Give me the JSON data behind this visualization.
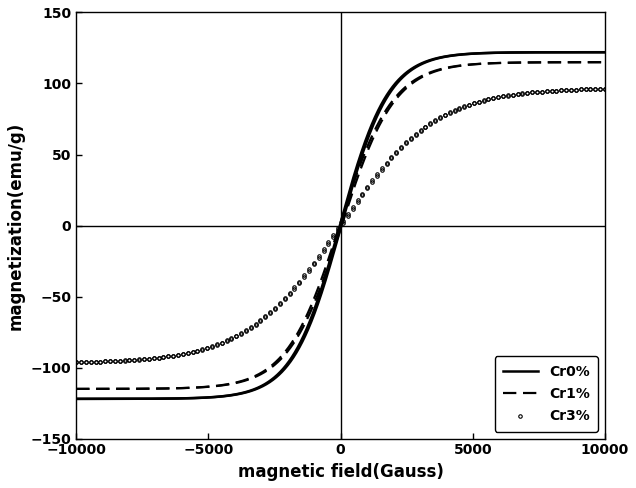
{
  "title": "",
  "xlabel": "magnetic field(Gauss)",
  "ylabel": "magnetization(emu/g)",
  "xlim": [
    -10000,
    10000
  ],
  "ylim": [
    -150,
    150
  ],
  "xticks": [
    -10000,
    -5000,
    0,
    5000,
    10000
  ],
  "yticks": [
    -150,
    -100,
    -50,
    0,
    50,
    100,
    150
  ],
  "legend_labels": [
    "Cr0%",
    "Cr1%",
    "Cr3%"
  ],
  "background_color": "#ffffff",
  "line_color": "#000000",
  "cr0_ms": 122,
  "cr0_steepness": 0.00055,
  "cr0_hc": 30,
  "cr1_ms": 115,
  "cr1_steepness": 0.0005,
  "cr1_hc": 40,
  "cr3_ms": 97,
  "cr3_steepness": 0.00028,
  "cr3_hc": 20,
  "n_points": 2000,
  "n_sparse": 110
}
